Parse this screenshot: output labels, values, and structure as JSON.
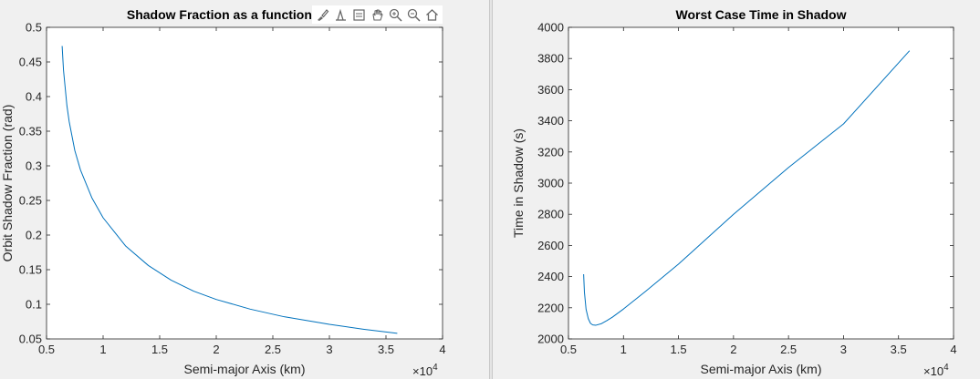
{
  "toolbar": {
    "icons": [
      "brush-icon",
      "data-tips-icon",
      "legend-icon",
      "pan-hand-icon",
      "zoom-in-icon",
      "zoom-out-icon",
      "home-icon"
    ]
  },
  "chart_data": [
    {
      "type": "line",
      "title": "Shadow Fraction as a function of the S",
      "xlabel": "Semi-major Axis (km)",
      "ylabel": "Orbit Shadow Fraction (rad)",
      "x_multiplier": "×10^4",
      "xlim": [
        0.5,
        4
      ],
      "ylim": [
        0.05,
        0.5
      ],
      "xticks": [
        "0.5",
        "1",
        "1.5",
        "2",
        "2.5",
        "3",
        "3.5",
        "4"
      ],
      "yticks": [
        "0.05",
        "0.1",
        "0.15",
        "0.2",
        "0.25",
        "0.3",
        "0.35",
        "0.4",
        "0.45",
        "0.5"
      ],
      "line_color": "#0072bd",
      "series": [
        {
          "x": [
            0.6378,
            0.65,
            0.68,
            0.7,
            0.75,
            0.8,
            0.9,
            1.0,
            1.2,
            1.4,
            1.6,
            1.8,
            2.0,
            2.3,
            2.6,
            3.0,
            3.3,
            3.6
          ],
          "y": [
            0.473,
            0.438,
            0.387,
            0.364,
            0.322,
            0.294,
            0.254,
            0.225,
            0.184,
            0.156,
            0.135,
            0.119,
            0.107,
            0.093,
            0.082,
            0.071,
            0.064,
            0.058
          ]
        }
      ]
    },
    {
      "type": "line",
      "title": "Worst Case Time in Shadow",
      "xlabel": "Semi-major Axis (km)",
      "ylabel": "Time in Shadow (s)",
      "x_multiplier": "×10^4",
      "xlim": [
        0.5,
        4
      ],
      "ylim": [
        2000,
        4000
      ],
      "xticks": [
        "0.5",
        "1",
        "1.5",
        "2",
        "2.5",
        "3",
        "3.5",
        "4"
      ],
      "yticks": [
        "2000",
        "2200",
        "2400",
        "2600",
        "2800",
        "3000",
        "3200",
        "3400",
        "3600",
        "3800",
        "4000"
      ],
      "line_color": "#0072bd",
      "series": [
        {
          "x": [
            0.6378,
            0.645,
            0.66,
            0.68,
            0.7,
            0.72,
            0.75,
            0.8,
            0.85,
            0.9,
            1.0,
            1.2,
            1.5,
            2.0,
            2.5,
            3.0,
            3.6
          ],
          "y": [
            2415,
            2300,
            2190,
            2130,
            2100,
            2090,
            2088,
            2098,
            2118,
            2140,
            2192,
            2305,
            2480,
            2800,
            3100,
            3380,
            3850
          ]
        }
      ]
    }
  ]
}
